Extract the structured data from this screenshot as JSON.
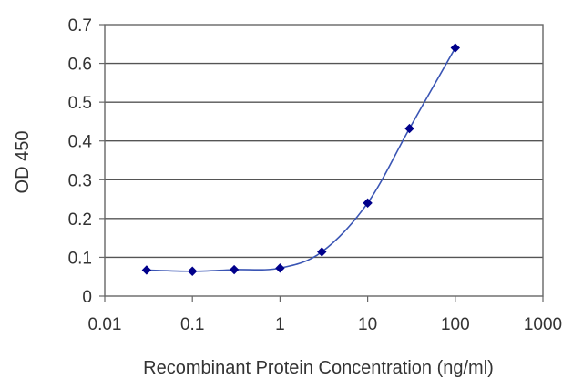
{
  "chart_data": {
    "type": "scatter",
    "title": "",
    "xlabel": "Recombinant Protein Concentration (ng/ml)",
    "ylabel": "OD 450",
    "x_scale": "log",
    "xlim": [
      0.01,
      1000
    ],
    "ylim": [
      0,
      0.7
    ],
    "x_ticks": [
      "0.01",
      "0.1",
      "1",
      "10",
      "100",
      "1000"
    ],
    "y_ticks": [
      "0",
      "0.1",
      "0.2",
      "0.3",
      "0.4",
      "0.5",
      "0.6",
      "0.7"
    ],
    "grid": "horizontal",
    "legend": "none",
    "fit_curve": true,
    "series": [
      {
        "x": [
          0.03,
          0.1,
          0.3,
          1,
          3,
          10,
          30,
          100
        ],
        "y": [
          0.067,
          0.064,
          0.068,
          0.072,
          0.114,
          0.24,
          0.432,
          0.64
        ]
      }
    ],
    "colors": {
      "marker": "#00008b",
      "line": "#3a55b4",
      "grid": "#555555",
      "frame": "#666666",
      "text": "#333333"
    }
  }
}
